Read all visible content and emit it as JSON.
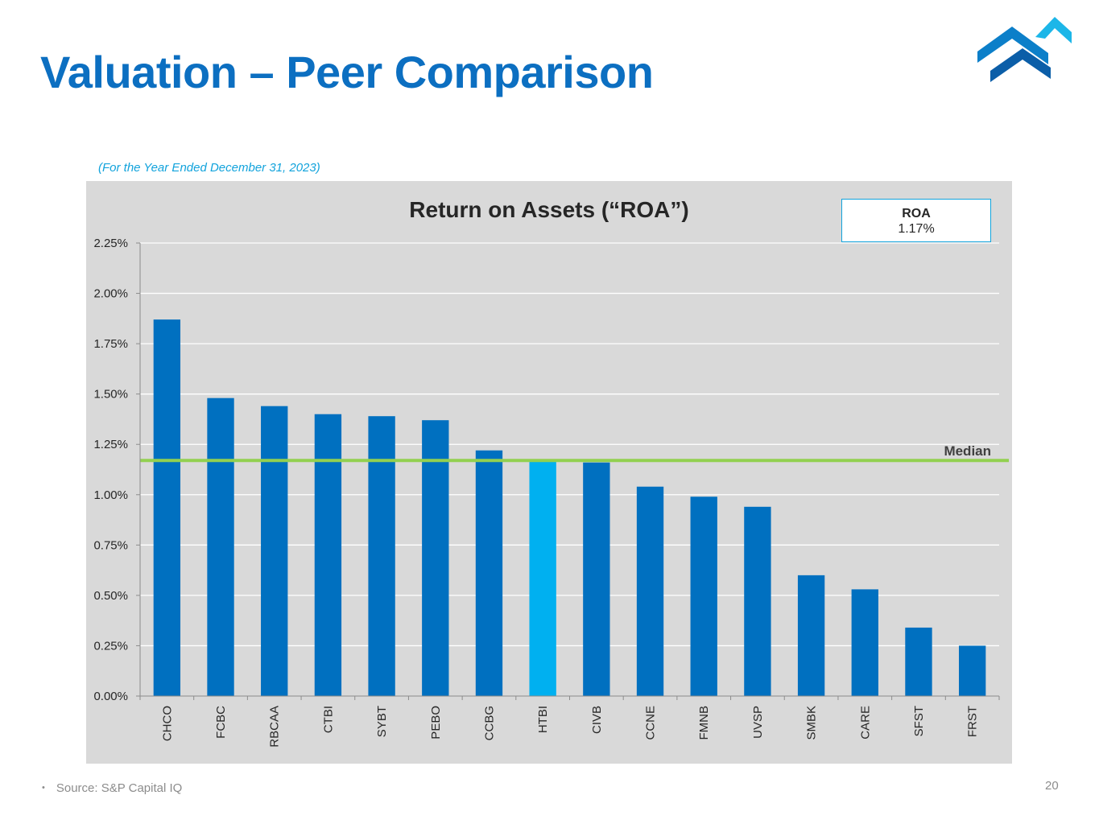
{
  "header": {
    "title": "Valuation – Peer Comparison"
  },
  "subtitle": "(For the Year Ended December 31, 2023)",
  "roa_box": {
    "label": "ROA",
    "value": "1.17%"
  },
  "footer": {
    "bullet": "•",
    "source": "Source: S&P Capital IQ",
    "page_number": "20"
  },
  "colors": {
    "title": "#0c6fc1",
    "bar": "#0070c0",
    "highlight_bar": "#00b0f0",
    "median_line": "#92d050",
    "panel_bg": "#d9d9d9",
    "logo_light": "#1cb6e8",
    "logo_mid": "#0c7fc9",
    "logo_dark": "#0b5ea8"
  },
  "chart_data": {
    "type": "bar",
    "title": "Return on Assets (“ROA”)",
    "xlabel": "",
    "ylabel": "",
    "categories": [
      "CHCO",
      "FCBC",
      "RBCAA",
      "CTBI",
      "SYBT",
      "PEBO",
      "CCBG",
      "HTBI",
      "CIVB",
      "CCNE",
      "FMNB",
      "UVSP",
      "SMBK",
      "CARE",
      "SFST",
      "FRST"
    ],
    "values": [
      1.87,
      1.48,
      1.44,
      1.4,
      1.39,
      1.37,
      1.22,
      1.17,
      1.16,
      1.04,
      0.99,
      0.94,
      0.6,
      0.53,
      0.34,
      0.25
    ],
    "highlight_category": "HTBI",
    "ylim": [
      0,
      2.25
    ],
    "yticks": [
      0,
      0.25,
      0.5,
      0.75,
      1.0,
      1.25,
      1.5,
      1.75,
      2.0,
      2.25
    ],
    "ytick_labels": [
      "0.00%",
      "0.25%",
      "0.50%",
      "0.75%",
      "1.00%",
      "1.25%",
      "1.50%",
      "1.75%",
      "2.00%",
      "2.25%"
    ],
    "grid": true,
    "median": {
      "value": 1.17,
      "label": "Median"
    }
  }
}
